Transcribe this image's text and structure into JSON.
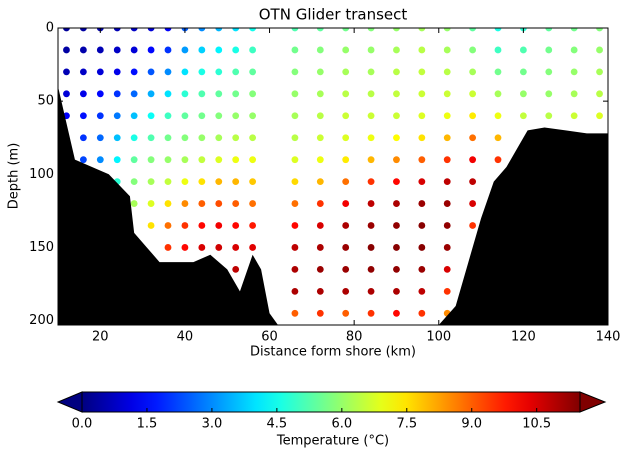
{
  "chart_data": {
    "type": "scatter",
    "title": "OTN Glider transect",
    "x_label": "Distance form shore (km)",
    "y_label": "Depth (m)",
    "xlim": [
      10,
      140
    ],
    "ylim": [
      0,
      203
    ],
    "y_inverted": true,
    "xticks": [
      20,
      40,
      60,
      80,
      100,
      120,
      140
    ],
    "yticks": [
      0,
      50,
      100,
      150,
      200
    ],
    "colormap": "jet",
    "colorbar": {
      "label": "Temperature (°C)",
      "clim": [
        0,
        11.5
      ],
      "extend": "both",
      "ticks": [
        {
          "value": 0,
          "label": "0.0"
        },
        1.5,
        {
          "value": 3,
          "label": "3.0"
        },
        4.5,
        {
          "value": 6,
          "label": "6.0"
        },
        7.5,
        {
          "value": 9,
          "label": "9.0"
        },
        10.5
      ]
    },
    "seafloor": {
      "color": "#000000",
      "x": [
        10,
        14,
        22,
        27,
        28,
        31,
        34,
        37,
        42,
        46,
        50,
        53,
        56,
        58,
        60,
        62,
        64,
        100,
        104,
        107,
        110,
        113,
        116,
        119,
        121,
        125,
        130,
        135,
        140
      ],
      "depth": [
        40,
        90,
        100,
        115,
        140,
        150,
        160,
        160,
        160,
        155,
        165,
        180,
        155,
        165,
        195,
        203,
        203,
        203,
        190,
        160,
        130,
        105,
        95,
        80,
        70,
        68,
        70,
        72,
        72
      ]
    },
    "profiles": [
      {
        "x": 12,
        "depths": [
          0,
          15,
          30,
          45,
          60
        ],
        "temps": [
          0.3,
          0.4,
          0.6,
          1.0,
          1.4
        ]
      },
      {
        "x": 16,
        "depths": [
          0,
          15,
          30,
          45,
          60,
          75,
          90
        ],
        "temps": [
          0.4,
          0.5,
          0.8,
          1.2,
          1.6,
          2.0,
          2.2
        ]
      },
      {
        "x": 20,
        "depths": [
          0,
          15,
          30,
          45,
          60,
          75,
          90
        ],
        "temps": [
          0.5,
          0.6,
          1.0,
          1.5,
          2.0,
          2.6,
          3.0
        ]
      },
      {
        "x": 24,
        "depths": [
          0,
          15,
          30,
          45,
          60,
          75,
          90,
          105
        ],
        "temps": [
          0.6,
          0.8,
          1.2,
          2.0,
          2.8,
          3.6,
          4.2,
          4.8
        ]
      },
      {
        "x": 28,
        "depths": [
          0,
          15,
          30,
          45,
          60,
          75,
          90,
          105,
          120
        ],
        "temps": [
          0.8,
          1.0,
          1.6,
          2.6,
          3.6,
          4.6,
          5.4,
          5.8,
          6.2
        ]
      },
      {
        "x": 32,
        "depths": [
          0,
          15,
          30,
          45,
          60,
          75,
          90,
          105,
          120,
          135
        ],
        "temps": [
          1.0,
          1.5,
          2.4,
          3.4,
          4.4,
          5.2,
          5.8,
          6.2,
          6.8,
          7.5
        ]
      },
      {
        "x": 36,
        "depths": [
          0,
          15,
          30,
          45,
          60,
          75,
          90,
          105,
          120,
          135,
          150
        ],
        "temps": [
          1.4,
          2.0,
          3.0,
          4.0,
          5.0,
          5.6,
          6.0,
          6.5,
          7.5,
          8.8,
          9.5
        ]
      },
      {
        "x": 40,
        "depths": [
          0,
          15,
          30,
          45,
          60,
          75,
          90,
          105,
          120,
          135,
          150
        ],
        "temps": [
          2.5,
          3.2,
          4.0,
          4.8,
          5.4,
          5.8,
          6.2,
          7.0,
          8.5,
          9.5,
          10.0
        ]
      },
      {
        "x": 44,
        "depths": [
          0,
          15,
          30,
          45,
          60,
          75,
          90,
          105,
          120,
          135,
          150
        ],
        "temps": [
          3.0,
          3.8,
          4.6,
          5.2,
          5.6,
          6.0,
          6.5,
          7.5,
          9.0,
          10.0,
          10.5
        ]
      },
      {
        "x": 48,
        "depths": [
          0,
          15,
          30,
          45,
          60,
          75,
          90,
          105,
          120,
          135,
          150
        ],
        "temps": [
          3.5,
          4.2,
          4.8,
          5.4,
          5.8,
          6.2,
          6.8,
          8.0,
          9.2,
          10.2,
          10.6
        ]
      },
      {
        "x": 52,
        "depths": [
          0,
          15,
          30,
          45,
          60,
          75,
          90,
          105,
          120,
          135,
          150,
          165
        ],
        "temps": [
          4.0,
          4.6,
          5.2,
          5.6,
          6.0,
          6.4,
          7.0,
          8.0,
          9.0,
          10.0,
          10.5,
          10.8
        ]
      },
      {
        "x": 56,
        "depths": [
          0,
          15,
          30,
          45,
          60,
          75,
          90,
          105,
          120,
          135,
          150
        ],
        "temps": [
          4.5,
          5.0,
          5.4,
          5.8,
          6.0,
          6.4,
          7.0,
          7.8,
          8.8,
          9.8,
          10.4
        ]
      },
      {
        "x": 66,
        "depths": [
          0,
          15,
          30,
          45,
          60,
          75,
          90,
          105,
          120,
          135,
          150,
          165,
          180,
          195
        ],
        "temps": [
          5.2,
          5.6,
          5.8,
          6.0,
          6.2,
          6.4,
          6.8,
          7.6,
          8.8,
          10.0,
          10.8,
          11.0,
          11.0,
          9.0
        ]
      },
      {
        "x": 72,
        "depths": [
          0,
          15,
          30,
          45,
          60,
          75,
          90,
          105,
          120,
          135,
          150,
          165,
          180,
          195
        ],
        "temps": [
          5.4,
          5.8,
          6.0,
          6.2,
          6.4,
          6.6,
          7.0,
          8.0,
          9.5,
          10.5,
          11.0,
          11.2,
          11.0,
          9.5
        ]
      },
      {
        "x": 78,
        "depths": [
          0,
          15,
          30,
          45,
          60,
          75,
          90,
          105,
          120,
          135,
          150,
          165,
          180,
          195
        ],
        "temps": [
          5.6,
          6.0,
          6.2,
          6.4,
          6.6,
          6.8,
          7.4,
          8.8,
          10.2,
          11.0,
          11.2,
          11.2,
          11.0,
          9.0
        ]
      },
      {
        "x": 84,
        "depths": [
          0,
          15,
          30,
          45,
          60,
          75,
          90,
          105,
          120,
          135,
          150,
          165,
          180,
          195
        ],
        "temps": [
          5.8,
          6.0,
          6.2,
          6.4,
          6.6,
          7.0,
          8.0,
          9.5,
          10.8,
          11.2,
          11.4,
          11.3,
          11.0,
          9.5
        ]
      },
      {
        "x": 90,
        "depths": [
          0,
          15,
          30,
          45,
          60,
          75,
          90,
          105,
          120,
          135,
          150,
          165,
          180,
          195
        ],
        "temps": [
          6.0,
          6.2,
          6.4,
          6.5,
          6.6,
          7.2,
          8.5,
          10.0,
          11.0,
          11.3,
          11.4,
          11.3,
          11.0,
          10.0
        ]
      },
      {
        "x": 96,
        "depths": [
          0,
          15,
          30,
          45,
          60,
          75,
          90,
          105,
          120,
          135,
          150,
          165,
          180,
          195
        ],
        "temps": [
          6.2,
          6.4,
          6.5,
          6.6,
          6.8,
          7.5,
          9.0,
          10.5,
          11.2,
          11.4,
          11.4,
          11.2,
          10.8,
          9.5
        ]
      },
      {
        "x": 102,
        "depths": [
          0,
          15,
          30,
          45,
          60,
          75,
          90,
          105,
          120,
          135,
          150,
          165,
          180,
          195
        ],
        "temps": [
          6.0,
          6.2,
          6.4,
          6.6,
          7.0,
          8.0,
          9.5,
          10.8,
          11.2,
          11.3,
          11.2,
          10.5,
          9.5,
          8.5
        ]
      },
      {
        "x": 108,
        "depths": [
          0,
          15,
          30,
          45,
          60,
          75,
          90,
          105,
          120,
          135
        ],
        "temps": [
          5.4,
          5.8,
          6.2,
          6.6,
          7.4,
          8.8,
          10.2,
          10.8,
          10.5,
          9.5
        ]
      },
      {
        "x": 114,
        "depths": [
          0,
          15,
          30,
          45,
          60,
          75,
          90
        ],
        "temps": [
          4.6,
          5.0,
          5.6,
          6.2,
          7.0,
          8.0,
          9.5
        ]
      },
      {
        "x": 120,
        "depths": [
          0,
          15,
          30,
          45,
          60
        ],
        "temps": [
          4.8,
          5.2,
          5.6,
          6.0,
          6.5
        ]
      },
      {
        "x": 126,
        "depths": [
          0,
          15,
          30,
          45,
          60
        ],
        "temps": [
          5.4,
          5.6,
          5.8,
          6.0,
          6.4
        ]
      },
      {
        "x": 132,
        "depths": [
          0,
          15,
          30,
          45,
          60
        ],
        "temps": [
          5.6,
          5.8,
          6.0,
          6.2,
          6.6
        ]
      },
      {
        "x": 138,
        "depths": [
          0,
          15,
          30,
          45,
          60
        ],
        "temps": [
          5.8,
          6.0,
          6.2,
          6.4,
          6.8
        ]
      }
    ]
  }
}
